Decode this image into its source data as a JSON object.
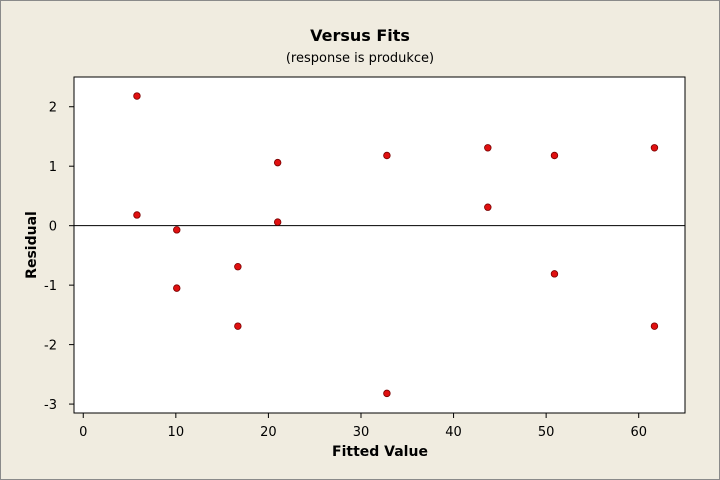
{
  "chart_data": {
    "type": "scatter",
    "title": "Versus Fits",
    "subtitle": "(response is produkce)",
    "xlabel": "Fitted Value",
    "ylabel": "Residual",
    "xlim": [
      -1,
      65
    ],
    "ylim": [
      -3.15,
      2.5
    ],
    "xticks": [
      0,
      10,
      20,
      30,
      40,
      50,
      60
    ],
    "yticks": [
      2,
      1,
      0,
      -1,
      -2,
      -3
    ],
    "reference_line": 0,
    "grid": false,
    "marker_color": "#e01010",
    "background_color": "#f0ece0",
    "plot_background": "#ffffff",
    "points": [
      {
        "x": 5.8,
        "y": 2.18
      },
      {
        "x": 5.8,
        "y": 0.18
      },
      {
        "x": 10.1,
        "y": -0.07
      },
      {
        "x": 10.1,
        "y": -1.05
      },
      {
        "x": 16.7,
        "y": -0.69
      },
      {
        "x": 16.7,
        "y": -1.69
      },
      {
        "x": 21.0,
        "y": 1.06
      },
      {
        "x": 21.0,
        "y": 0.06
      },
      {
        "x": 32.8,
        "y": 1.18
      },
      {
        "x": 32.8,
        "y": -2.82
      },
      {
        "x": 43.7,
        "y": 1.31
      },
      {
        "x": 43.7,
        "y": 0.31
      },
      {
        "x": 50.9,
        "y": 1.18
      },
      {
        "x": 50.9,
        "y": -0.81
      },
      {
        "x": 61.7,
        "y": 1.31
      },
      {
        "x": 61.7,
        "y": -1.69
      }
    ]
  }
}
